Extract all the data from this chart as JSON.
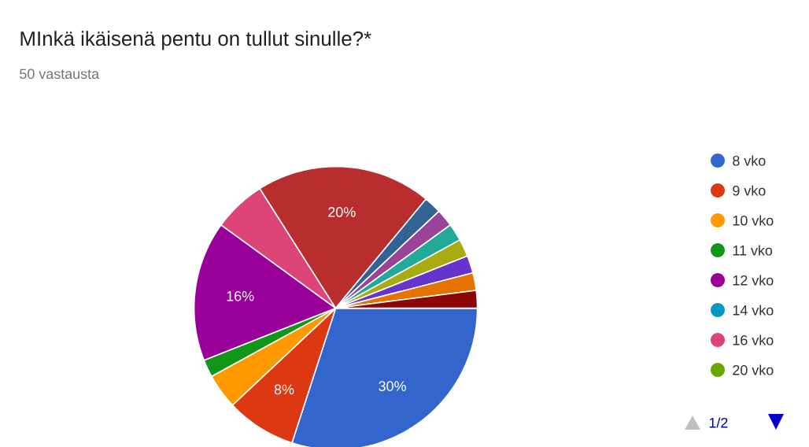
{
  "chart_data": {
    "type": "pie",
    "title": "MInkä ikäisenä pentu on tullut sinulle?*",
    "subtitle": "50 vastausta",
    "categories": [
      "8 vko",
      "9 vko",
      "10 vko",
      "11 vko",
      "12 vko",
      "14 vko",
      "16 vko",
      "20 vko",
      null,
      null,
      null,
      null,
      null,
      null,
      null,
      null
    ],
    "values": [
      30,
      8,
      4,
      2,
      16,
      0,
      6,
      0,
      20,
      2,
      2,
      2,
      2,
      2,
      2,
      2
    ],
    "colors": [
      "#3366cc",
      "#dc3912",
      "#ff9900",
      "#109618",
      "#990099",
      "#0099c6",
      "#dd4477",
      "#66aa00",
      "#b82e2e",
      "#316395",
      "#994499",
      "#22aa99",
      "#aaaa11",
      "#6633cc",
      "#e67300",
      "#8b0707"
    ],
    "value_labels": [
      "30%",
      "8%",
      null,
      null,
      "16%",
      null,
      null,
      null,
      "20%",
      null,
      null,
      null,
      null,
      null,
      null,
      null
    ],
    "legend": "right",
    "annotations": [
      "1/2"
    ]
  }
}
